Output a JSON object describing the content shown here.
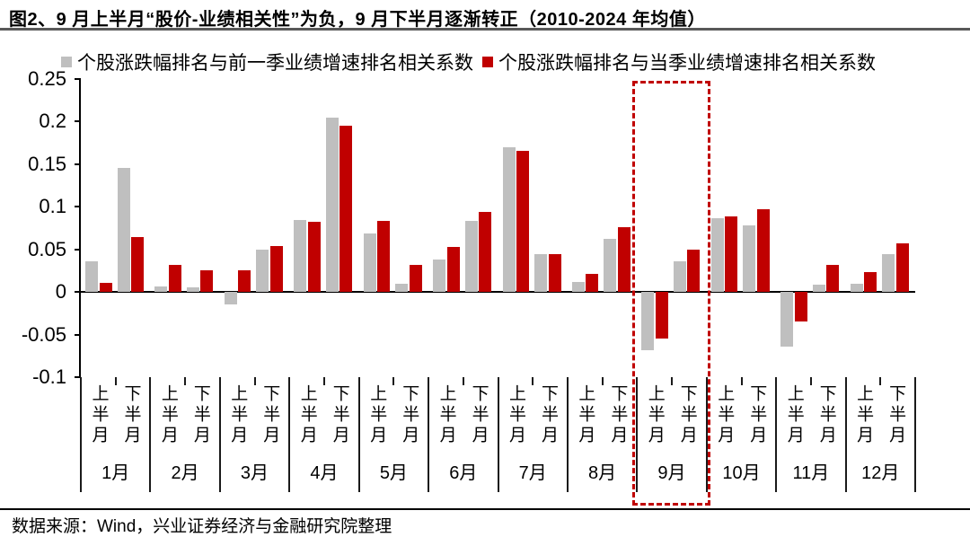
{
  "title": "图2、9 月上半月“股价-业绩相关性”为负，9 月下半月逐渐转正（2010-2024 年均值）",
  "footer": {
    "source": "数据来源：Wind，兴业证券经济与金融研究院整理"
  },
  "colors": {
    "prev_quarter_bar": "#BFBFBF",
    "current_quarter_bar": "#C00000",
    "highlight_box": "#C00000",
    "title_rule": "#595959",
    "axis": "#000000"
  },
  "chart_data": {
    "type": "bar",
    "title": "图2、9 月上半月“股价-业绩相关性”为负，9 月下半月逐渐转正（2010-2024 年均值）",
    "months": [
      "1月",
      "2月",
      "3月",
      "4月",
      "5月",
      "6月",
      "7月",
      "8月",
      "9月",
      "10月",
      "11月",
      "12月"
    ],
    "half_labels": [
      "上半月",
      "下半月"
    ],
    "categories": [
      "1月上半月",
      "1月下半月",
      "2月上半月",
      "2月下半月",
      "3月上半月",
      "3月下半月",
      "4月上半月",
      "4月下半月",
      "5月上半月",
      "5月下半月",
      "6月上半月",
      "6月下半月",
      "7月上半月",
      "7月下半月",
      "8月上半月",
      "8月下半月",
      "9月上半月",
      "9月下半月",
      "10月上半月",
      "10月下半月",
      "11月上半月",
      "11月下半月",
      "12月上半月",
      "12月下半月"
    ],
    "series": [
      {
        "name": "个股涨跌幅排名与前一季业绩增速排名相关系数",
        "color": "#BFBFBF",
        "values": [
          0.036,
          0.146,
          0.007,
          0.005,
          -0.015,
          0.05,
          0.085,
          0.205,
          0.069,
          0.01,
          0.038,
          0.084,
          0.17,
          0.044,
          0.012,
          0.062,
          -0.068,
          0.036,
          0.087,
          0.078,
          -0.064,
          0.009,
          0.01,
          0.045
        ]
      },
      {
        "name": "个股涨跌幅排名与当季业绩增速排名相关系数",
        "color": "#C00000",
        "values": [
          0.011,
          0.065,
          0.032,
          0.026,
          0.025,
          0.054,
          0.082,
          0.195,
          0.084,
          0.032,
          0.053,
          0.094,
          0.166,
          0.045,
          0.021,
          0.076,
          -0.055,
          0.05,
          0.089,
          0.097,
          -0.035,
          0.032,
          0.023,
          0.057
        ]
      }
    ],
    "ylim": [
      -0.1,
      0.25
    ],
    "ytick_labels": [
      "0.25",
      "0.2",
      "0.15",
      "0.1",
      "0.05",
      "0",
      "-0.05",
      "-0.1"
    ],
    "grid": false,
    "legend_position": "top",
    "highlight": {
      "month": "9月",
      "type": "dashed-box",
      "color": "#C00000"
    }
  }
}
